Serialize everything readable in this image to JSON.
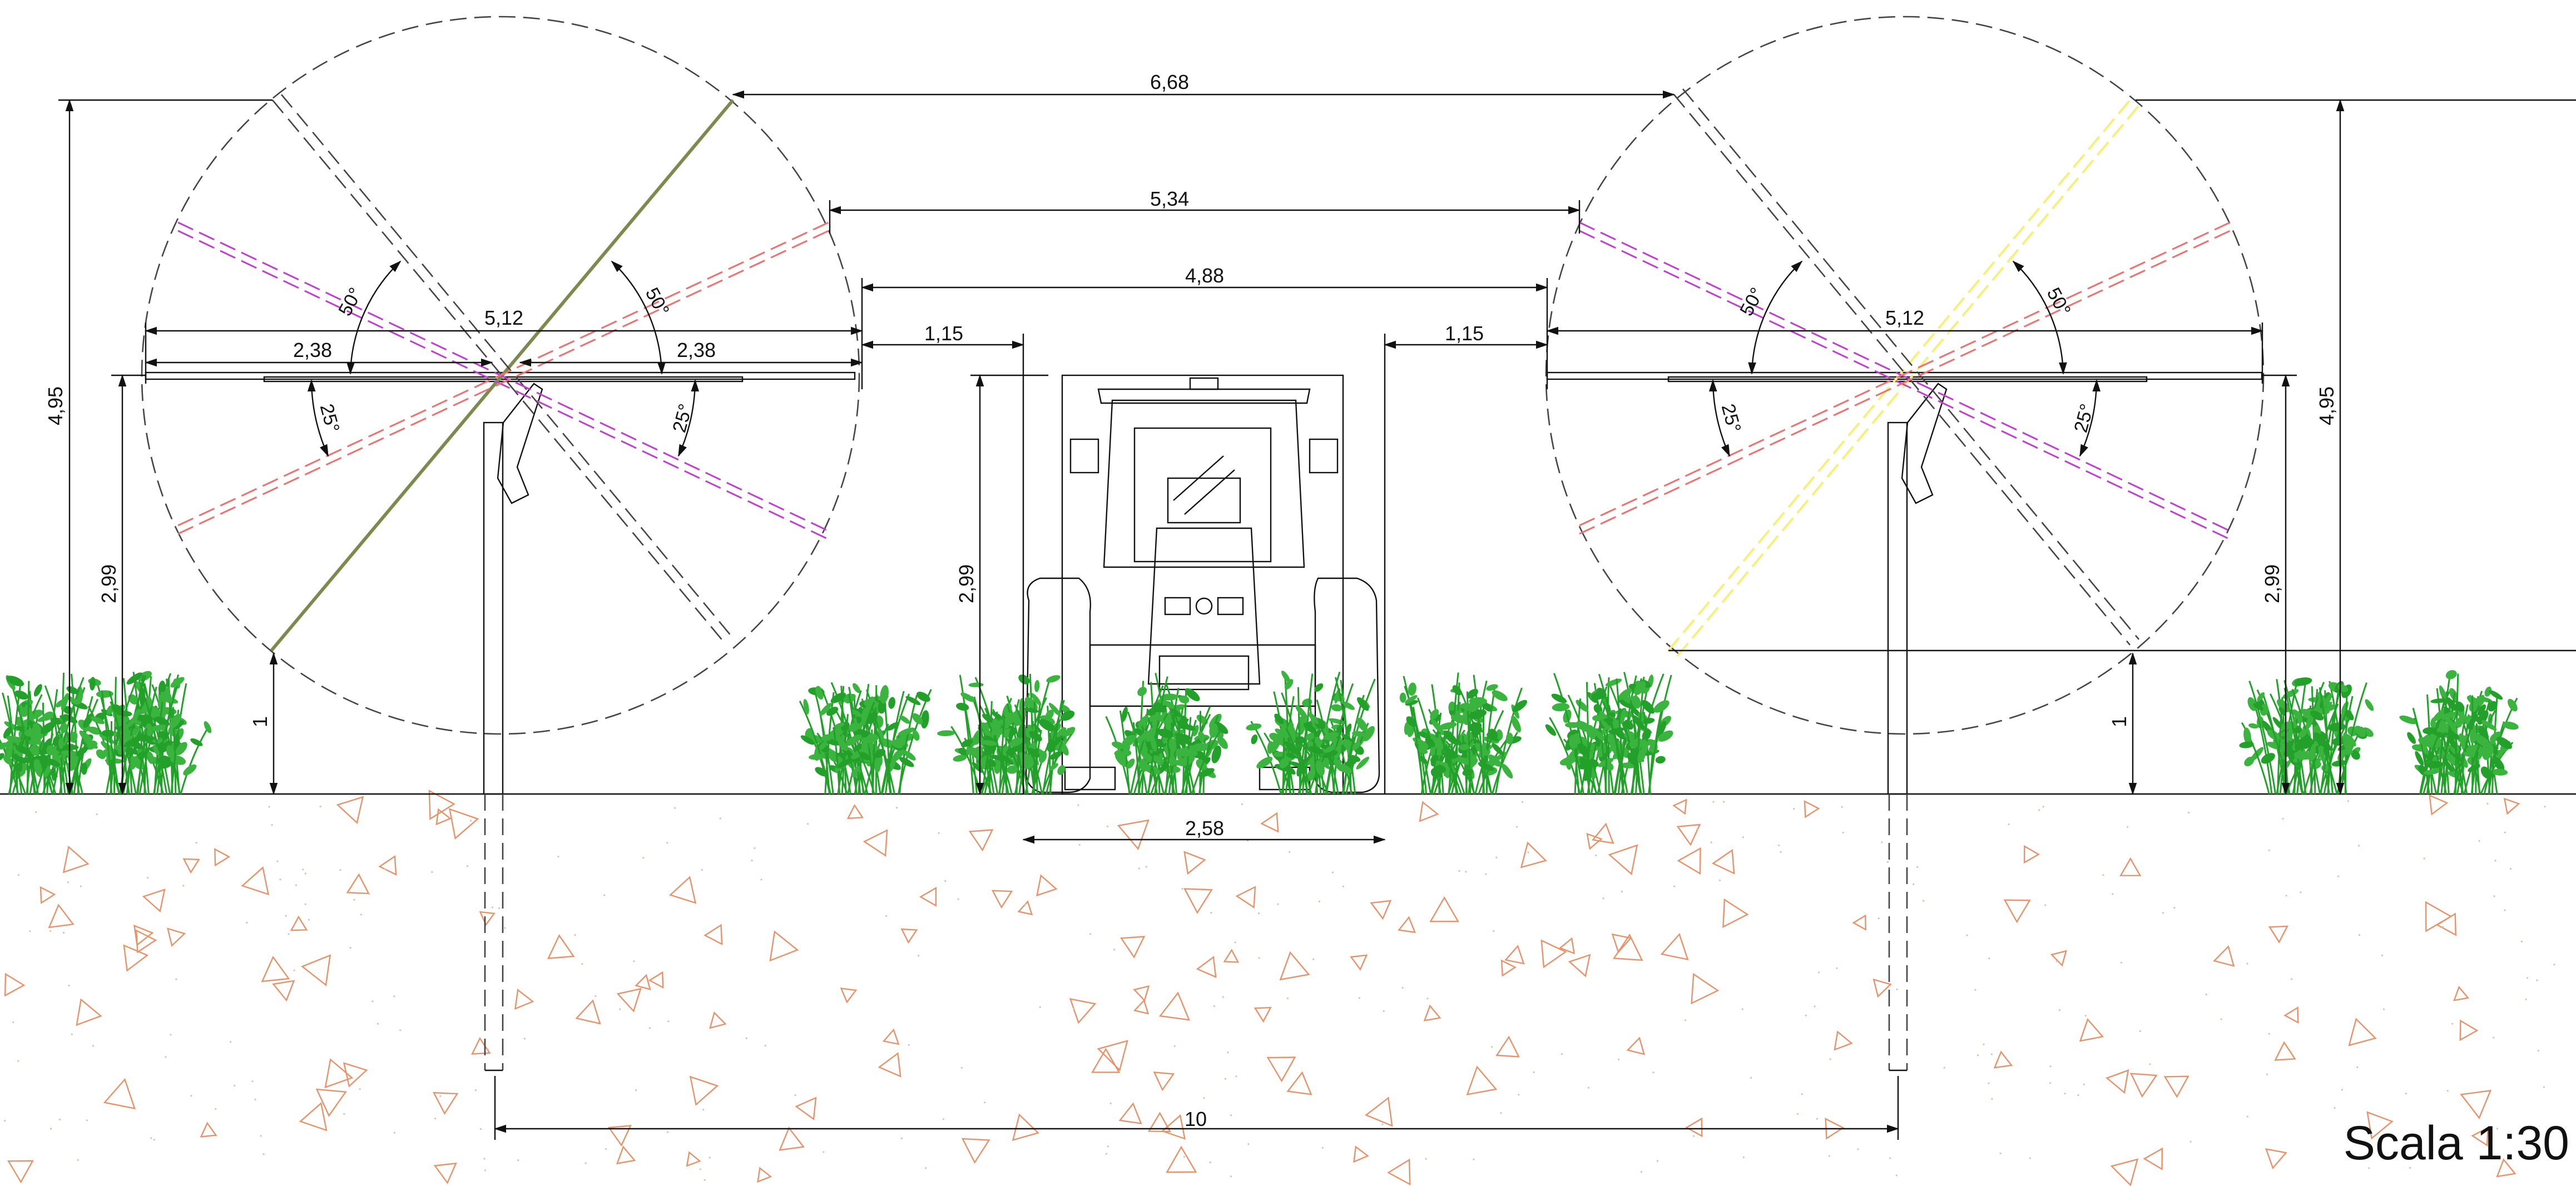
{
  "dimensions": {
    "post_spacing": "10",
    "panel_gap_max": "6,68",
    "panel_gap_mid": "5,34",
    "panel_gap_flat": "4,88",
    "left_clear": "1,15",
    "right_clear": "1,15",
    "tractor_width": "2,58",
    "panel_span_left": "5,12",
    "panel_span_right": "5,12",
    "half_left_a": "2,38",
    "half_left_b": "2,38",
    "total_height_left": "4,95",
    "total_height_right": "4,95",
    "pivot_height_left": "2,99",
    "pivot_height_tractor": "2,99",
    "pivot_height_right": "2,99",
    "ground_clear_left": "1",
    "ground_clear_right": "1"
  },
  "angles": {
    "tilt_50_a": "50°",
    "tilt_50_b": "50°",
    "tilt_50_c": "50°",
    "tilt_50_d": "50°",
    "tilt_25_a": "25°",
    "tilt_25_b": "25°",
    "tilt_25_c": "25°",
    "tilt_25_d": "25°"
  },
  "scale_label": "Scala 1:30",
  "colors": {
    "magenta_dash": "#c040d0",
    "red_dash": "#f07070",
    "yellow_dash": "#f4f07a",
    "soil_marks": "#e8926a",
    "vegetation": "#22a02a",
    "outline": "#111111"
  }
}
